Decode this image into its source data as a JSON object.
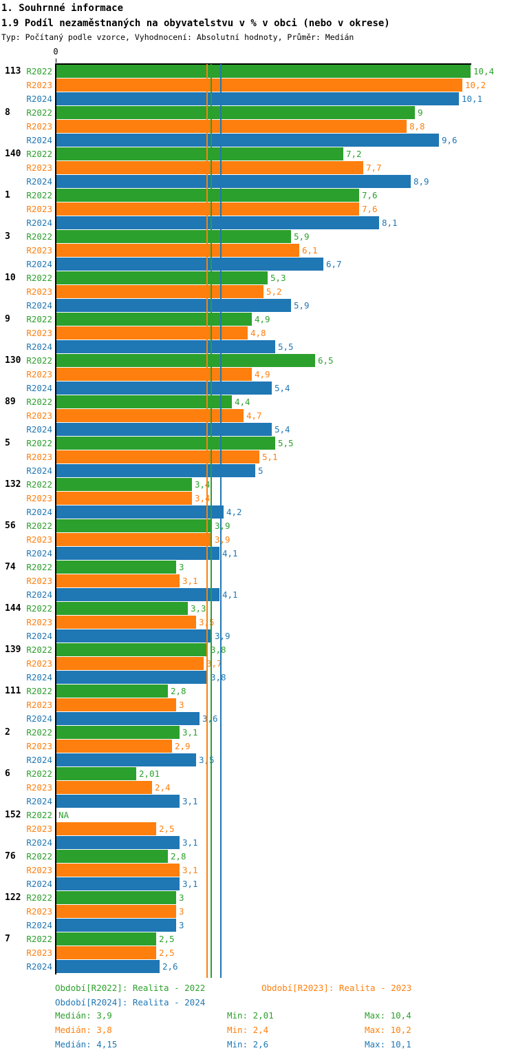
{
  "header": {
    "title": "1. Souhrnné informace",
    "subtitle": "1.9 Podíl nezaměstnaných na obyvatelstvu v % v obci (nebo v okrese)",
    "meta": "Typ: Počítaný podle vzorce, Vyhodnocení: Absolutní hodnoty, Průměr: Medián"
  },
  "colors": {
    "r2022": "#2ca02c",
    "r2023": "#ff7f0e",
    "r2024": "#1f77b4",
    "axis": "#000000"
  },
  "chart_data": {
    "type": "bar",
    "orientation": "horizontal",
    "title": "1.9 Podíl nezaměstnaných na obyvatelstvu v % v obci (nebo v okrese)",
    "xlabel": "",
    "ylabel": "",
    "xlim": [
      0,
      10.4
    ],
    "axis_origin_label": "0",
    "grid": false,
    "legend_position": "bottom",
    "series_labels": [
      "R2022",
      "R2023",
      "R2024"
    ],
    "series_colors": [
      "#2ca02c",
      "#ff7f0e",
      "#1f77b4"
    ],
    "groups": [
      {
        "label": "113",
        "values": [
          10.4,
          10.2,
          10.1
        ],
        "display": [
          "10,4",
          "10,2",
          "10,1"
        ]
      },
      {
        "label": "8",
        "values": [
          9,
          8.8,
          9.6
        ],
        "display": [
          "9",
          "8,8",
          "9,6"
        ]
      },
      {
        "label": "140",
        "values": [
          7.2,
          7.7,
          8.9
        ],
        "display": [
          "7,2",
          "7,7",
          "8,9"
        ]
      },
      {
        "label": "1",
        "values": [
          7.6,
          7.6,
          8.1
        ],
        "display": [
          "7,6",
          "7,6",
          "8,1"
        ]
      },
      {
        "label": "3",
        "values": [
          5.9,
          6.1,
          6.7
        ],
        "display": [
          "5,9",
          "6,1",
          "6,7"
        ]
      },
      {
        "label": "10",
        "values": [
          5.3,
          5.2,
          5.9
        ],
        "display": [
          "5,3",
          "5,2",
          "5,9"
        ]
      },
      {
        "label": "9",
        "values": [
          4.9,
          4.8,
          5.5
        ],
        "display": [
          "4,9",
          "4,8",
          "5,5"
        ]
      },
      {
        "label": "130",
        "values": [
          6.5,
          4.9,
          5.4
        ],
        "display": [
          "6,5",
          "4,9",
          "5,4"
        ]
      },
      {
        "label": "89",
        "values": [
          4.4,
          4.7,
          5.4
        ],
        "display": [
          "4,4",
          "4,7",
          "5,4"
        ]
      },
      {
        "label": "5",
        "values": [
          5.5,
          5.1,
          5
        ],
        "display": [
          "5,5",
          "5,1",
          "5"
        ]
      },
      {
        "label": "132",
        "values": [
          3.4,
          3.4,
          4.2
        ],
        "display": [
          "3,4",
          "3,4",
          "4,2"
        ]
      },
      {
        "label": "56",
        "values": [
          3.9,
          3.9,
          4.1
        ],
        "display": [
          "3,9",
          "3,9",
          "4,1"
        ]
      },
      {
        "label": "74",
        "values": [
          3,
          3.1,
          4.1
        ],
        "display": [
          "3",
          "3,1",
          "4,1"
        ]
      },
      {
        "label": "144",
        "values": [
          3.3,
          3.5,
          3.9
        ],
        "display": [
          "3,3",
          "3,5",
          "3,9"
        ]
      },
      {
        "label": "139",
        "values": [
          3.8,
          3.7,
          3.8
        ],
        "display": [
          "3,8",
          "3,7",
          "3,8"
        ]
      },
      {
        "label": "111",
        "values": [
          2.8,
          3,
          3.6
        ],
        "display": [
          "2,8",
          "3",
          "3,6"
        ]
      },
      {
        "label": "2",
        "values": [
          3.1,
          2.9,
          3.5
        ],
        "display": [
          "3,1",
          "2,9",
          "3,5"
        ]
      },
      {
        "label": "6",
        "values": [
          2.01,
          2.4,
          3.1
        ],
        "display": [
          "2,01",
          "2,4",
          "3,1"
        ]
      },
      {
        "label": "152",
        "values": [
          null,
          2.5,
          3.1
        ],
        "display": [
          "NA",
          "2,5",
          "3,1"
        ]
      },
      {
        "label": "76",
        "values": [
          2.8,
          3.1,
          3.1
        ],
        "display": [
          "2,8",
          "3,1",
          "3,1"
        ]
      },
      {
        "label": "122",
        "values": [
          3,
          3,
          3
        ],
        "display": [
          "3",
          "3",
          "3"
        ]
      },
      {
        "label": "7",
        "values": [
          2.5,
          2.5,
          2.6
        ],
        "display": [
          "2,5",
          "2,5",
          "2,6"
        ]
      }
    ],
    "median_lines": [
      {
        "series": "R2023",
        "value": 3.8,
        "color": "#ff7f0e"
      },
      {
        "series": "R2022",
        "value": 3.9,
        "color": "#2ca02c"
      },
      {
        "series": "R2024",
        "value": 4.15,
        "color": "#1f77b4"
      }
    ]
  },
  "legend": {
    "periods": [
      {
        "label": "Období[R2022]: Realita - 2022",
        "color": "#2ca02c",
        "col": 0,
        "row": 0
      },
      {
        "label": "Období[R2023]: Realita - 2023",
        "color": "#ff7f0e",
        "col": 1,
        "row": 0
      },
      {
        "label": "Období[R2024]: Realita - 2024",
        "color": "#1f77b4",
        "col": 0,
        "row": 1
      }
    ],
    "stats": [
      {
        "median": "Medián: 3,9",
        "min": "Min: 2,01",
        "max": "Max: 10,4",
        "color": "#2ca02c"
      },
      {
        "median": "Medián: 3,8",
        "min": "Min: 2,4",
        "max": "Max: 10,2",
        "color": "#ff7f0e"
      },
      {
        "median": "Medián: 4,15",
        "min": "Min: 2,6",
        "max": "Max: 10,1",
        "color": "#1f77b4"
      }
    ]
  }
}
